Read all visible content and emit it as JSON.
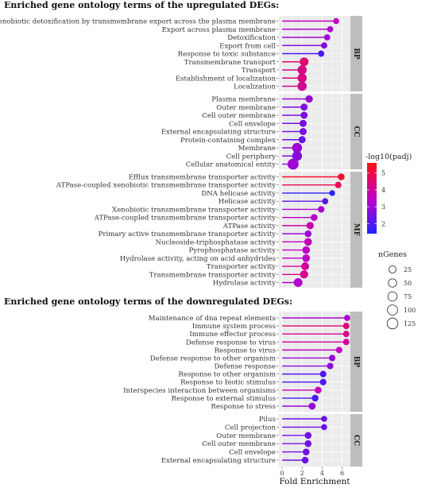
{
  "colors": {
    "low": "#2222ff",
    "mid": "#c000c8",
    "high": "#ff1010",
    "panel_bg": "#ebebeb",
    "strip_bg": "#bdbdbd"
  },
  "chart_data": [
    {
      "type": "lollipop",
      "title": "Enriched gene ontology terms of the upregulated DEGs:",
      "xlim": [
        0,
        6.5
      ],
      "facets": [
        {
          "name": "BP",
          "terms": [
            {
              "label": "Xenobiotic detoxification by transmembrane export across the plasma membrane",
              "fold": 5.4,
              "padj": 3.6,
              "genes": 10
            },
            {
              "label": "Export across plasma membrane",
              "fold": 4.8,
              "padj": 3.3,
              "genes": 12
            },
            {
              "label": "Detoxification",
              "fold": 4.5,
              "padj": 3.1,
              "genes": 12
            },
            {
              "label": "Export from cell",
              "fold": 4.2,
              "padj": 2.7,
              "genes": 13
            },
            {
              "label": "Response to toxic substance",
              "fold": 3.9,
              "padj": 2.0,
              "genes": 13
            },
            {
              "label": "Transmembrane transport",
              "fold": 2.2,
              "padj": 4.5,
              "genes": 60
            },
            {
              "label": "Transport",
              "fold": 2.0,
              "padj": 4.3,
              "genes": 70
            },
            {
              "label": "Establishment of localization",
              "fold": 2.0,
              "padj": 4.3,
              "genes": 70
            },
            {
              "label": "Localization",
              "fold": 2.0,
              "padj": 4.1,
              "genes": 72
            }
          ]
        },
        {
          "name": "CC",
          "terms": [
            {
              "label": "Plasma membrane",
              "fold": 2.7,
              "padj": 3.0,
              "genes": 30
            },
            {
              "label": "Outer membrane",
              "fold": 2.2,
              "padj": 2.6,
              "genes": 25
            },
            {
              "label": "Cell outer membrane",
              "fold": 2.2,
              "padj": 2.6,
              "genes": 25
            },
            {
              "label": "Cell envelope",
              "fold": 2.1,
              "padj": 2.5,
              "genes": 25
            },
            {
              "label": "External encapsulating structure",
              "fold": 2.1,
              "padj": 2.5,
              "genes": 25
            },
            {
              "label": "Protein-containing complex",
              "fold": 2.0,
              "padj": 2.3,
              "genes": 25
            },
            {
              "label": "Membrane",
              "fold": 1.5,
              "padj": 3.0,
              "genes": 95
            },
            {
              "label": "Cell periphery",
              "fold": 1.5,
              "padj": 2.7,
              "genes": 92
            },
            {
              "label": "Cellular anatomical entity",
              "fold": 1.1,
              "padj": 3.1,
              "genes": 130
            }
          ]
        },
        {
          "name": "MF",
          "terms": [
            {
              "label": "Efflux transmembrane transporter activity",
              "fold": 5.9,
              "padj": 5.3,
              "genes": 20
            },
            {
              "label": "ATPase-coupled xenobiotic transmembrane transporter activity",
              "fold": 5.6,
              "padj": 4.8,
              "genes": 15
            },
            {
              "label": "DNA helicase activity",
              "fold": 5.0,
              "padj": 1.5,
              "genes": 8
            },
            {
              "label": "Helicase activity",
              "fold": 4.3,
              "padj": 2.2,
              "genes": 12
            },
            {
              "label": "Xenobiotic transmembrane transporter activity",
              "fold": 3.9,
              "padj": 3.2,
              "genes": 18
            },
            {
              "label": "ATPase-coupled transmembrane transporter activity",
              "fold": 3.2,
              "padj": 3.4,
              "genes": 20
            },
            {
              "label": "ATPase activity",
              "fold": 2.8,
              "padj": 3.8,
              "genes": 30
            },
            {
              "label": "Primary active transmembrane transporter activity",
              "fold": 2.6,
              "padj": 3.0,
              "genes": 20
            },
            {
              "label": "Nucleoside-triphosphatase activity",
              "fold": 2.6,
              "padj": 3.6,
              "genes": 35
            },
            {
              "label": "Pyrophosphatase activity",
              "fold": 2.4,
              "padj": 3.5,
              "genes": 35
            },
            {
              "label": "Hydrolase activity, acting on acid anhydrides",
              "fold": 2.4,
              "padj": 3.5,
              "genes": 35
            },
            {
              "label": "Transporter activity",
              "fold": 2.3,
              "padj": 4.0,
              "genes": 40
            },
            {
              "label": "Transmembrane transporter activity",
              "fold": 2.2,
              "padj": 4.2,
              "genes": 45
            },
            {
              "label": "Hydrolase activity",
              "fold": 1.6,
              "padj": 3.3,
              "genes": 60
            }
          ]
        }
      ]
    },
    {
      "type": "lollipop",
      "title": "Enriched gene ontology terms of the downregulated DEGs:",
      "xlabel": "Fold Enrichment",
      "xticks": [
        0,
        2,
        4,
        6
      ],
      "xlim": [
        0,
        6.5
      ],
      "facets": [
        {
          "name": "BP",
          "terms": [
            {
              "label": "Maintenance of dna repeat elements",
              "fold": 6.5,
              "padj": 3.2,
              "genes": 12
            },
            {
              "label": "Immune system process",
              "fold": 6.4,
              "padj": 4.5,
              "genes": 15
            },
            {
              "label": "Immune effector process",
              "fold": 6.4,
              "padj": 4.2,
              "genes": 14
            },
            {
              "label": "Defense response to virus",
              "fold": 6.4,
              "padj": 4.0,
              "genes": 14
            },
            {
              "label": "Response to virus",
              "fold": 5.7,
              "padj": 3.6,
              "genes": 14
            },
            {
              "label": "Defense response to other organism",
              "fold": 5.0,
              "padj": 3.0,
              "genes": 15
            },
            {
              "label": "Defense response",
              "fold": 4.8,
              "padj": 2.8,
              "genes": 15
            },
            {
              "label": "Response to other organism",
              "fold": 4.1,
              "padj": 2.0,
              "genes": 16
            },
            {
              "label": "Response to biotic stimulus",
              "fold": 4.1,
              "padj": 2.0,
              "genes": 16
            },
            {
              "label": "Interspecies interaction between organisms",
              "fold": 3.6,
              "padj": 3.7,
              "genes": 20
            },
            {
              "label": "Response to external stimulus",
              "fold": 3.3,
              "padj": 1.9,
              "genes": 20
            },
            {
              "label": "Response to stress",
              "fold": 3.0,
              "padj": 3.0,
              "genes": 22
            }
          ]
        },
        {
          "name": "CC",
          "terms": [
            {
              "label": "Pilus",
              "fold": 4.2,
              "padj": 2.3,
              "genes": 10
            },
            {
              "label": "Cell projection",
              "fold": 4.2,
              "padj": 2.3,
              "genes": 10
            },
            {
              "label": "Outer membrane",
              "fold": 2.6,
              "padj": 2.5,
              "genes": 20
            },
            {
              "label": "Cell outer membrane",
              "fold": 2.6,
              "padj": 2.5,
              "genes": 20
            },
            {
              "label": "Cell envelope",
              "fold": 2.4,
              "padj": 2.5,
              "genes": 20
            },
            {
              "label": "External encapsulating structure",
              "fold": 2.3,
              "padj": 2.4,
              "genes": 20
            }
          ]
        }
      ]
    }
  ],
  "legend": {
    "color": {
      "title": "-log10(padj)",
      "ticks": [
        2,
        3,
        4,
        5
      ],
      "range": [
        1.4,
        5.6
      ]
    },
    "size": {
      "title": "nGenes",
      "values": [
        25,
        50,
        75,
        100,
        125
      ]
    }
  }
}
